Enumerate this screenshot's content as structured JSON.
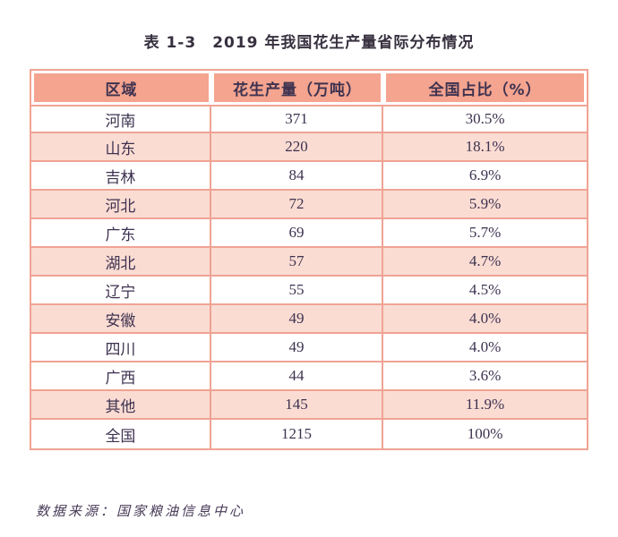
{
  "title": "表 1-3　2019 年我国花生产量省际分布情况",
  "table": {
    "headers": [
      "区域",
      "花生产量（万吨）",
      "全国占比（%）"
    ],
    "rows": [
      {
        "region": "河南",
        "production": "371",
        "share": "30.5%",
        "shaded": false
      },
      {
        "region": "山东",
        "production": "220",
        "share": "18.1%",
        "shaded": true
      },
      {
        "region": "吉林",
        "production": "84",
        "share": "6.9%",
        "shaded": false
      },
      {
        "region": "河北",
        "production": "72",
        "share": "5.9%",
        "shaded": true
      },
      {
        "region": "广东",
        "production": "69",
        "share": "5.7%",
        "shaded": false
      },
      {
        "region": "湖北",
        "production": "57",
        "share": "4.7%",
        "shaded": true
      },
      {
        "region": "辽宁",
        "production": "55",
        "share": "4.5%",
        "shaded": false
      },
      {
        "region": "安徽",
        "production": "49",
        "share": "4.0%",
        "shaded": true
      },
      {
        "region": "四川",
        "production": "49",
        "share": "4.0%",
        "shaded": false
      },
      {
        "region": "广西",
        "production": "44",
        "share": "3.6%",
        "shaded": false
      },
      {
        "region": "其他",
        "production": "145",
        "share": "11.9%",
        "shaded": true
      },
      {
        "region": "全国",
        "production": "1215",
        "share": "100%",
        "shaded": false
      }
    ]
  },
  "footer": {
    "source": "数据来源：国家粮油信息中心"
  },
  "colors": {
    "header_bg": "#f4a48f",
    "shaded_row_bg": "#fadcd3",
    "grid_border": "#f0a394",
    "text": "#3e3250",
    "title_text": "#37303f"
  },
  "chart_data": {
    "type": "table",
    "title": "表 1-3　2019 年我国花生产量省际分布情况",
    "columns": [
      "区域",
      "花生产量（万吨）",
      "全国占比（%）"
    ],
    "categories": [
      "河南",
      "山东",
      "吉林",
      "河北",
      "广东",
      "湖北",
      "辽宁",
      "安徽",
      "四川",
      "广西",
      "其他",
      "全国"
    ],
    "series": [
      {
        "name": "花生产量（万吨）",
        "values": [
          371,
          220,
          84,
          72,
          69,
          57,
          55,
          49,
          49,
          44,
          145,
          1215
        ]
      },
      {
        "name": "全国占比（%）",
        "values": [
          30.5,
          18.1,
          6.9,
          5.9,
          5.7,
          4.7,
          4.5,
          4.0,
          4.0,
          3.6,
          11.9,
          100
        ]
      }
    ],
    "source_note": "数据来源：国家粮油信息中心"
  }
}
